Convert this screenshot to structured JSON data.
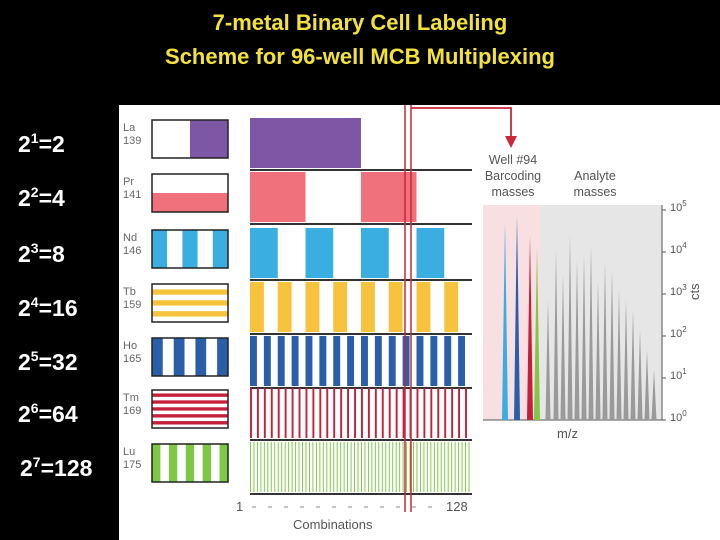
{
  "title": {
    "line1": "7-metal Binary Cell Labeling",
    "line2": "Scheme for 96-well MCB Multiplexing"
  },
  "colors": {
    "title": "#f2e23a",
    "arrow": "#c8283a",
    "barcode_bg": "#f8dfe2",
    "analyte_bg": "#e6e6e6"
  },
  "rows": [
    {
      "formula_base": "2",
      "exp": "1",
      "result": "=2",
      "element": "La",
      "mass": "139",
      "color": "#7e56a6",
      "divisions": 2
    },
    {
      "formula_base": "2",
      "exp": "2",
      "result": "=4",
      "element": "Pr",
      "mass": "141",
      "color": "#f0707c",
      "divisions": 4
    },
    {
      "formula_base": "2",
      "exp": "3",
      "result": "=8",
      "element": "Nd",
      "mass": "146",
      "color": "#3aaee0",
      "divisions": 8
    },
    {
      "formula_base": "2",
      "exp": "4",
      "result": "=16",
      "element": "Tb",
      "mass": "159",
      "color": "#f7c33c",
      "divisions": 16
    },
    {
      "formula_base": "2",
      "exp": "5",
      "result": "=32",
      "element": "Ho",
      "mass": "165",
      "color": "#2b5ea8",
      "divisions": 32
    },
    {
      "formula_base": "2",
      "exp": "6",
      "result": "=64",
      "element": "Tm",
      "mass": "169",
      "color": "#c4203a",
      "divisions": 64
    },
    {
      "formula_base": "2",
      "exp": "7",
      "result": "=128",
      "element": "Lu",
      "mass": "175",
      "color": "#7ec845",
      "divisions": 128
    }
  ],
  "combinations": {
    "start": "1",
    "end": "128",
    "label": "Combinations"
  },
  "well_panel": {
    "well_label": "Well #94",
    "barcoding_line1": "Barcoding",
    "barcoding_line2": "masses",
    "analyte_line1": "Analyte",
    "analyte_line2": "masses",
    "xlabel": "m/z",
    "ylabel": "cts",
    "yticks": [
      {
        "base": "10",
        "exp": "5"
      },
      {
        "base": "10",
        "exp": "4"
      },
      {
        "base": "10",
        "exp": "3"
      },
      {
        "base": "10",
        "exp": "2"
      },
      {
        "base": "10",
        "exp": "1"
      },
      {
        "base": "10",
        "exp": "0"
      }
    ],
    "barcode_peak_colors": [
      "#3aaee0",
      "#2b5ea8",
      "#c4203a",
      "#7ec845"
    ]
  }
}
